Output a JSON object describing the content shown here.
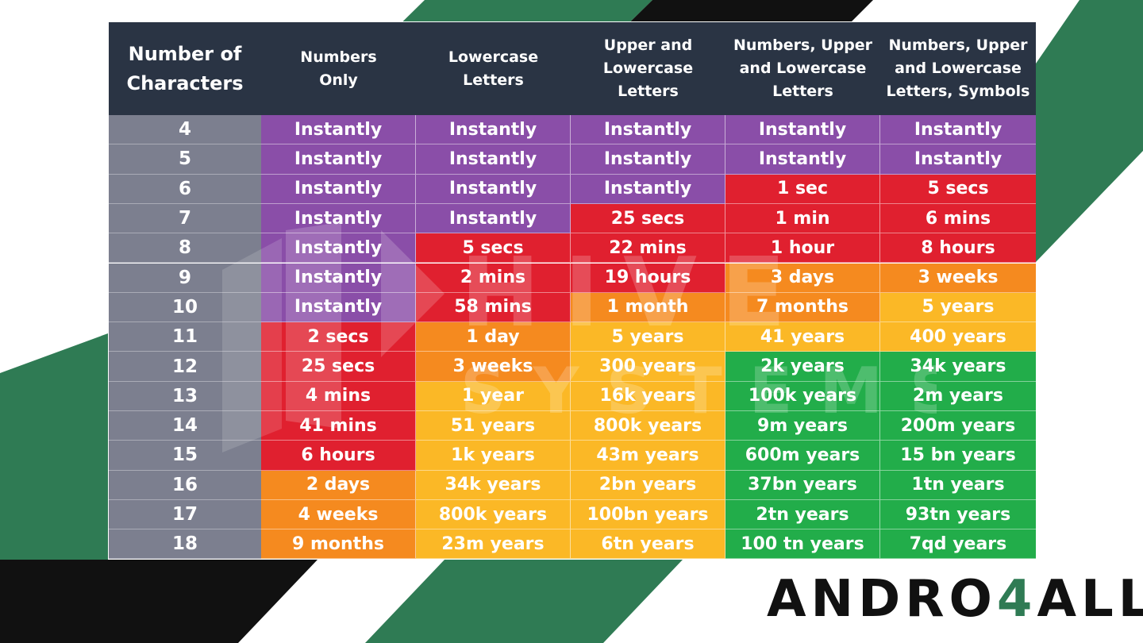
{
  "chart_data": {
    "type": "table",
    "columns": [
      "Number of\nCharacters",
      "Numbers\nOnly",
      "Lowercase\nLetters",
      "Upper and\nLowercase Letters",
      "Numbers, Upper\nand Lowercase\nLetters",
      "Numbers, Upper\nand Lowercase\nLetters, Symbols"
    ],
    "rows": [
      {
        "chars": "4",
        "cells": [
          "Instantly",
          "Instantly",
          "Instantly",
          "Instantly",
          "Instantly"
        ],
        "colors": [
          "purple",
          "purple",
          "purple",
          "purple",
          "purple"
        ]
      },
      {
        "chars": "5",
        "cells": [
          "Instantly",
          "Instantly",
          "Instantly",
          "Instantly",
          "Instantly"
        ],
        "colors": [
          "purple",
          "purple",
          "purple",
          "purple",
          "purple"
        ]
      },
      {
        "chars": "6",
        "cells": [
          "Instantly",
          "Instantly",
          "Instantly",
          "1 sec",
          "5 secs"
        ],
        "colors": [
          "purple",
          "purple",
          "purple",
          "red",
          "red"
        ]
      },
      {
        "chars": "7",
        "cells": [
          "Instantly",
          "Instantly",
          "25 secs",
          "1 min",
          "6 mins"
        ],
        "colors": [
          "purple",
          "purple",
          "red",
          "red",
          "red"
        ]
      },
      {
        "chars": "8",
        "cells": [
          "Instantly",
          "5 secs",
          "22 mins",
          "1 hour",
          "8 hours"
        ],
        "colors": [
          "purple",
          "red",
          "red",
          "red",
          "red"
        ]
      },
      {
        "chars": "9",
        "cells": [
          "Instantly",
          "2 mins",
          "19 hours",
          "3 days",
          "3 weeks"
        ],
        "colors": [
          "purple",
          "red",
          "red",
          "orange",
          "orange"
        ]
      },
      {
        "chars": "10",
        "cells": [
          "Instantly",
          "58 mins",
          "1 month",
          "7 months",
          "5 years"
        ],
        "colors": [
          "purple",
          "red",
          "orange",
          "orange",
          "yellow"
        ]
      },
      {
        "chars": "11",
        "cells": [
          "2 secs",
          "1 day",
          "5 years",
          "41 years",
          "400 years"
        ],
        "colors": [
          "red",
          "orange",
          "yellow",
          "yellow",
          "yellow"
        ]
      },
      {
        "chars": "12",
        "cells": [
          "25 secs",
          "3 weeks",
          "300 years",
          "2k years",
          "34k years"
        ],
        "colors": [
          "red",
          "orange",
          "yellow",
          "green",
          "green"
        ]
      },
      {
        "chars": "13",
        "cells": [
          "4 mins",
          "1 year",
          "16k years",
          "100k years",
          "2m years"
        ],
        "colors": [
          "red",
          "yellow",
          "yellow",
          "green",
          "green"
        ]
      },
      {
        "chars": "14",
        "cells": [
          "41 mins",
          "51 years",
          "800k years",
          "9m years",
          "200m years"
        ],
        "colors": [
          "red",
          "yellow",
          "yellow",
          "green",
          "green"
        ]
      },
      {
        "chars": "15",
        "cells": [
          "6 hours",
          "1k years",
          "43m years",
          "600m years",
          "15 bn years"
        ],
        "colors": [
          "red",
          "yellow",
          "yellow",
          "green",
          "green"
        ]
      },
      {
        "chars": "16",
        "cells": [
          "2 days",
          "34k years",
          "2bn years",
          "37bn years",
          "1tn years"
        ],
        "colors": [
          "orange",
          "yellow",
          "yellow",
          "green",
          "green"
        ]
      },
      {
        "chars": "17",
        "cells": [
          "4 weeks",
          "800k years",
          "100bn years",
          "2tn years",
          "93tn years"
        ],
        "colors": [
          "orange",
          "yellow",
          "yellow",
          "green",
          "green"
        ]
      },
      {
        "chars": "18",
        "cells": [
          "9 months",
          "23m years",
          "6tn years",
          "100 tn years",
          "7qd years"
        ],
        "colors": [
          "orange",
          "yellow",
          "yellow",
          "green",
          "green"
        ]
      }
    ]
  },
  "watermark": {
    "line1": "HIVE",
    "line2": "SYSTEMS"
  },
  "logo": {
    "prefix": "ANDRO",
    "digit": "4",
    "suffix": "ALL"
  }
}
